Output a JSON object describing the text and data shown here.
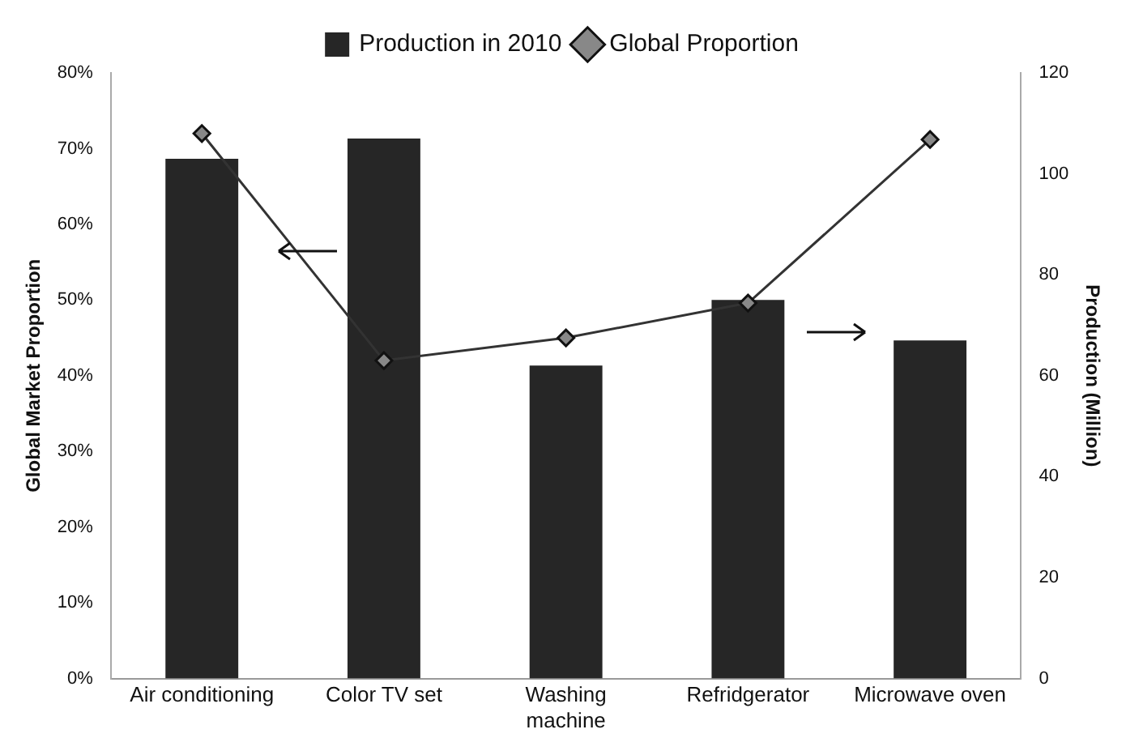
{
  "chart_data": {
    "type": "bar",
    "categories": [
      "Air conditioning",
      "Color TV set",
      [
        "Washing",
        "machine"
      ],
      "Refridgerator",
      "Microwave oven"
    ],
    "series": [
      {
        "name": "Production in 2010",
        "axis": "y2",
        "color": "#262626",
        "values": [
          103,
          107,
          62,
          75,
          67
        ]
      },
      {
        "name": "Global Proportion",
        "type": "line",
        "axis": "y",
        "color": "#333333",
        "marker": "diamond",
        "values": [
          72,
          42,
          45,
          49.6,
          71.2
        ]
      }
    ],
    "ylabel": "Global Market Proportion",
    "y2label": "Production (Million)",
    "ylim": [
      0,
      80
    ],
    "yticks": [
      {
        "value": 0,
        "label": "0%"
      },
      {
        "value": 10,
        "label": "10%"
      },
      {
        "value": 20,
        "label": "20%"
      },
      {
        "value": 30,
        "label": "30%"
      },
      {
        "value": 40,
        "label": "40%"
      },
      {
        "value": 50,
        "label": "50%"
      },
      {
        "value": 60,
        "label": "60%"
      },
      {
        "value": 70,
        "label": "70%"
      },
      {
        "value": 80,
        "label": "80%"
      }
    ],
    "y2lim": [
      0,
      120
    ],
    "y2ticks": [
      0,
      20,
      40,
      60,
      80,
      100,
      120
    ],
    "grid": false,
    "legend": "top"
  }
}
